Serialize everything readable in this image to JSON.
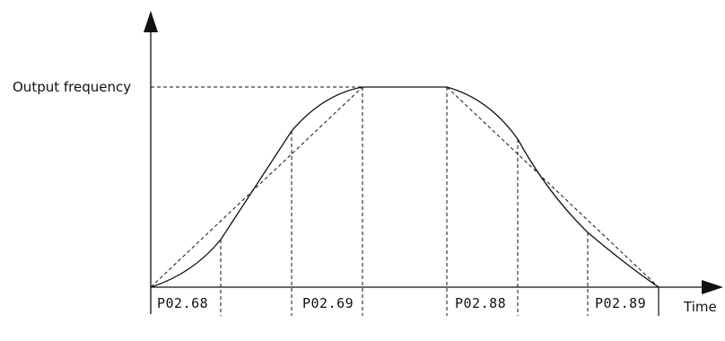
{
  "labels": {
    "y_axis": "Output frequency",
    "x_axis": "Time"
  },
  "segments": [
    {
      "code": "P02.68"
    },
    {
      "code": "P02.69"
    },
    {
      "code": "P02.88"
    },
    {
      "code": "P02.89"
    }
  ],
  "colors": {
    "line": "#111111",
    "background": "#ffffff"
  }
}
